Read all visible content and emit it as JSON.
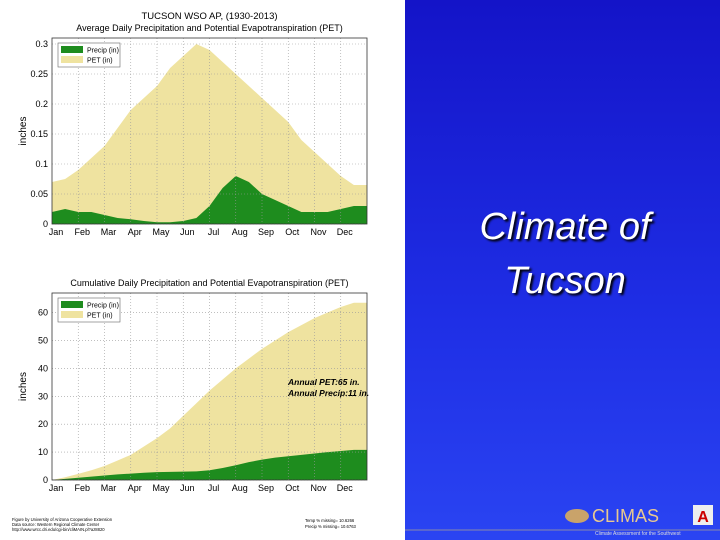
{
  "slide_title": "Climate of Tucson",
  "footer": {
    "left": [
      "Figure by University of Arizona Cooperative Extension",
      "Data source: Western Regional Climate Center",
      "http://www.wrcc.dri.edu/cgi-bin/cliMAIN.pl?az8820"
    ],
    "right": [
      "Temp % missing= 10.6266",
      "Precip % missing= 10.6763"
    ]
  },
  "logo": {
    "name": "CLIMAS",
    "tagline": "Climate Assessment for the Southwest",
    "mark": "A"
  },
  "chart_data": [
    {
      "type": "area",
      "title": "TUCSON WSO AP, (1930-2013)",
      "subtitle": "Average Daily Precipitation and Potential Evapotranspiration (PET)",
      "y_label": "inches",
      "legend": "upper left",
      "grid": true,
      "categories": [
        "Jan",
        null,
        "Feb",
        null,
        "Mar",
        null,
        "Apr",
        null,
        "May",
        null,
        "Jun",
        null,
        "Jul",
        null,
        "Aug",
        null,
        "Sep",
        null,
        "Oct",
        null,
        "Nov",
        null,
        "Dec",
        null
      ],
      "ylim": [
        0,
        0.31
      ],
      "yticks": [
        0,
        0.05,
        0.1,
        0.15,
        0.2,
        0.25,
        0.3
      ],
      "series": [
        {
          "name": "Precip (in)",
          "color": "#1e8c1e",
          "values": [
            0.02,
            0.025,
            0.02,
            0.02,
            0.015,
            0.01,
            0.008,
            0.005,
            0.003,
            0.003,
            0.005,
            0.01,
            0.03,
            0.06,
            0.08,
            0.07,
            0.05,
            0.04,
            0.03,
            0.02,
            0.02,
            0.02,
            0.025,
            0.03
          ]
        },
        {
          "name": "PET (in)",
          "color": "#efe3a0",
          "values": [
            0.07,
            0.075,
            0.09,
            0.11,
            0.13,
            0.16,
            0.19,
            0.21,
            0.23,
            0.26,
            0.28,
            0.3,
            0.29,
            0.27,
            0.25,
            0.23,
            0.21,
            0.19,
            0.17,
            0.14,
            0.12,
            0.1,
            0.08,
            0.065
          ]
        }
      ]
    },
    {
      "type": "area",
      "title": "Cumulative Daily Precipitation and Potential Evapotranspiration (PET)",
      "y_label": "inches",
      "legend": "upper left",
      "grid": true,
      "annotations": [
        "Annual PET:65 in.",
        "Annual Precip:11 in."
      ],
      "categories": [
        "Jan",
        null,
        "Feb",
        null,
        "Mar",
        null,
        "Apr",
        null,
        "May",
        null,
        "Jun",
        null,
        "Jul",
        null,
        "Aug",
        null,
        "Sep",
        null,
        "Oct",
        null,
        "Nov",
        null,
        "Dec",
        null
      ],
      "ylim": [
        0,
        67
      ],
      "yticks": [
        0,
        10,
        20,
        30,
        40,
        50,
        60
      ],
      "series": [
        {
          "name": "Precip (in)",
          "color": "#1e8c1e",
          "values": [
            0,
            0.4,
            0.8,
            1.2,
            1.6,
            2,
            2.3,
            2.6,
            2.8,
            2.9,
            3,
            3.1,
            3.5,
            4.3,
            5.3,
            6.4,
            7.3,
            8,
            8.5,
            9,
            9.5,
            10,
            10.4,
            10.8
          ]
        },
        {
          "name": "PET (in)",
          "color": "#efe3a0",
          "values": [
            0,
            1,
            2.2,
            3.5,
            5,
            7,
            9,
            12,
            15,
            18.5,
            23,
            27.5,
            32,
            36,
            40,
            43.5,
            47,
            50,
            53,
            55.5,
            58,
            60,
            62,
            63.5
          ]
        }
      ]
    }
  ]
}
